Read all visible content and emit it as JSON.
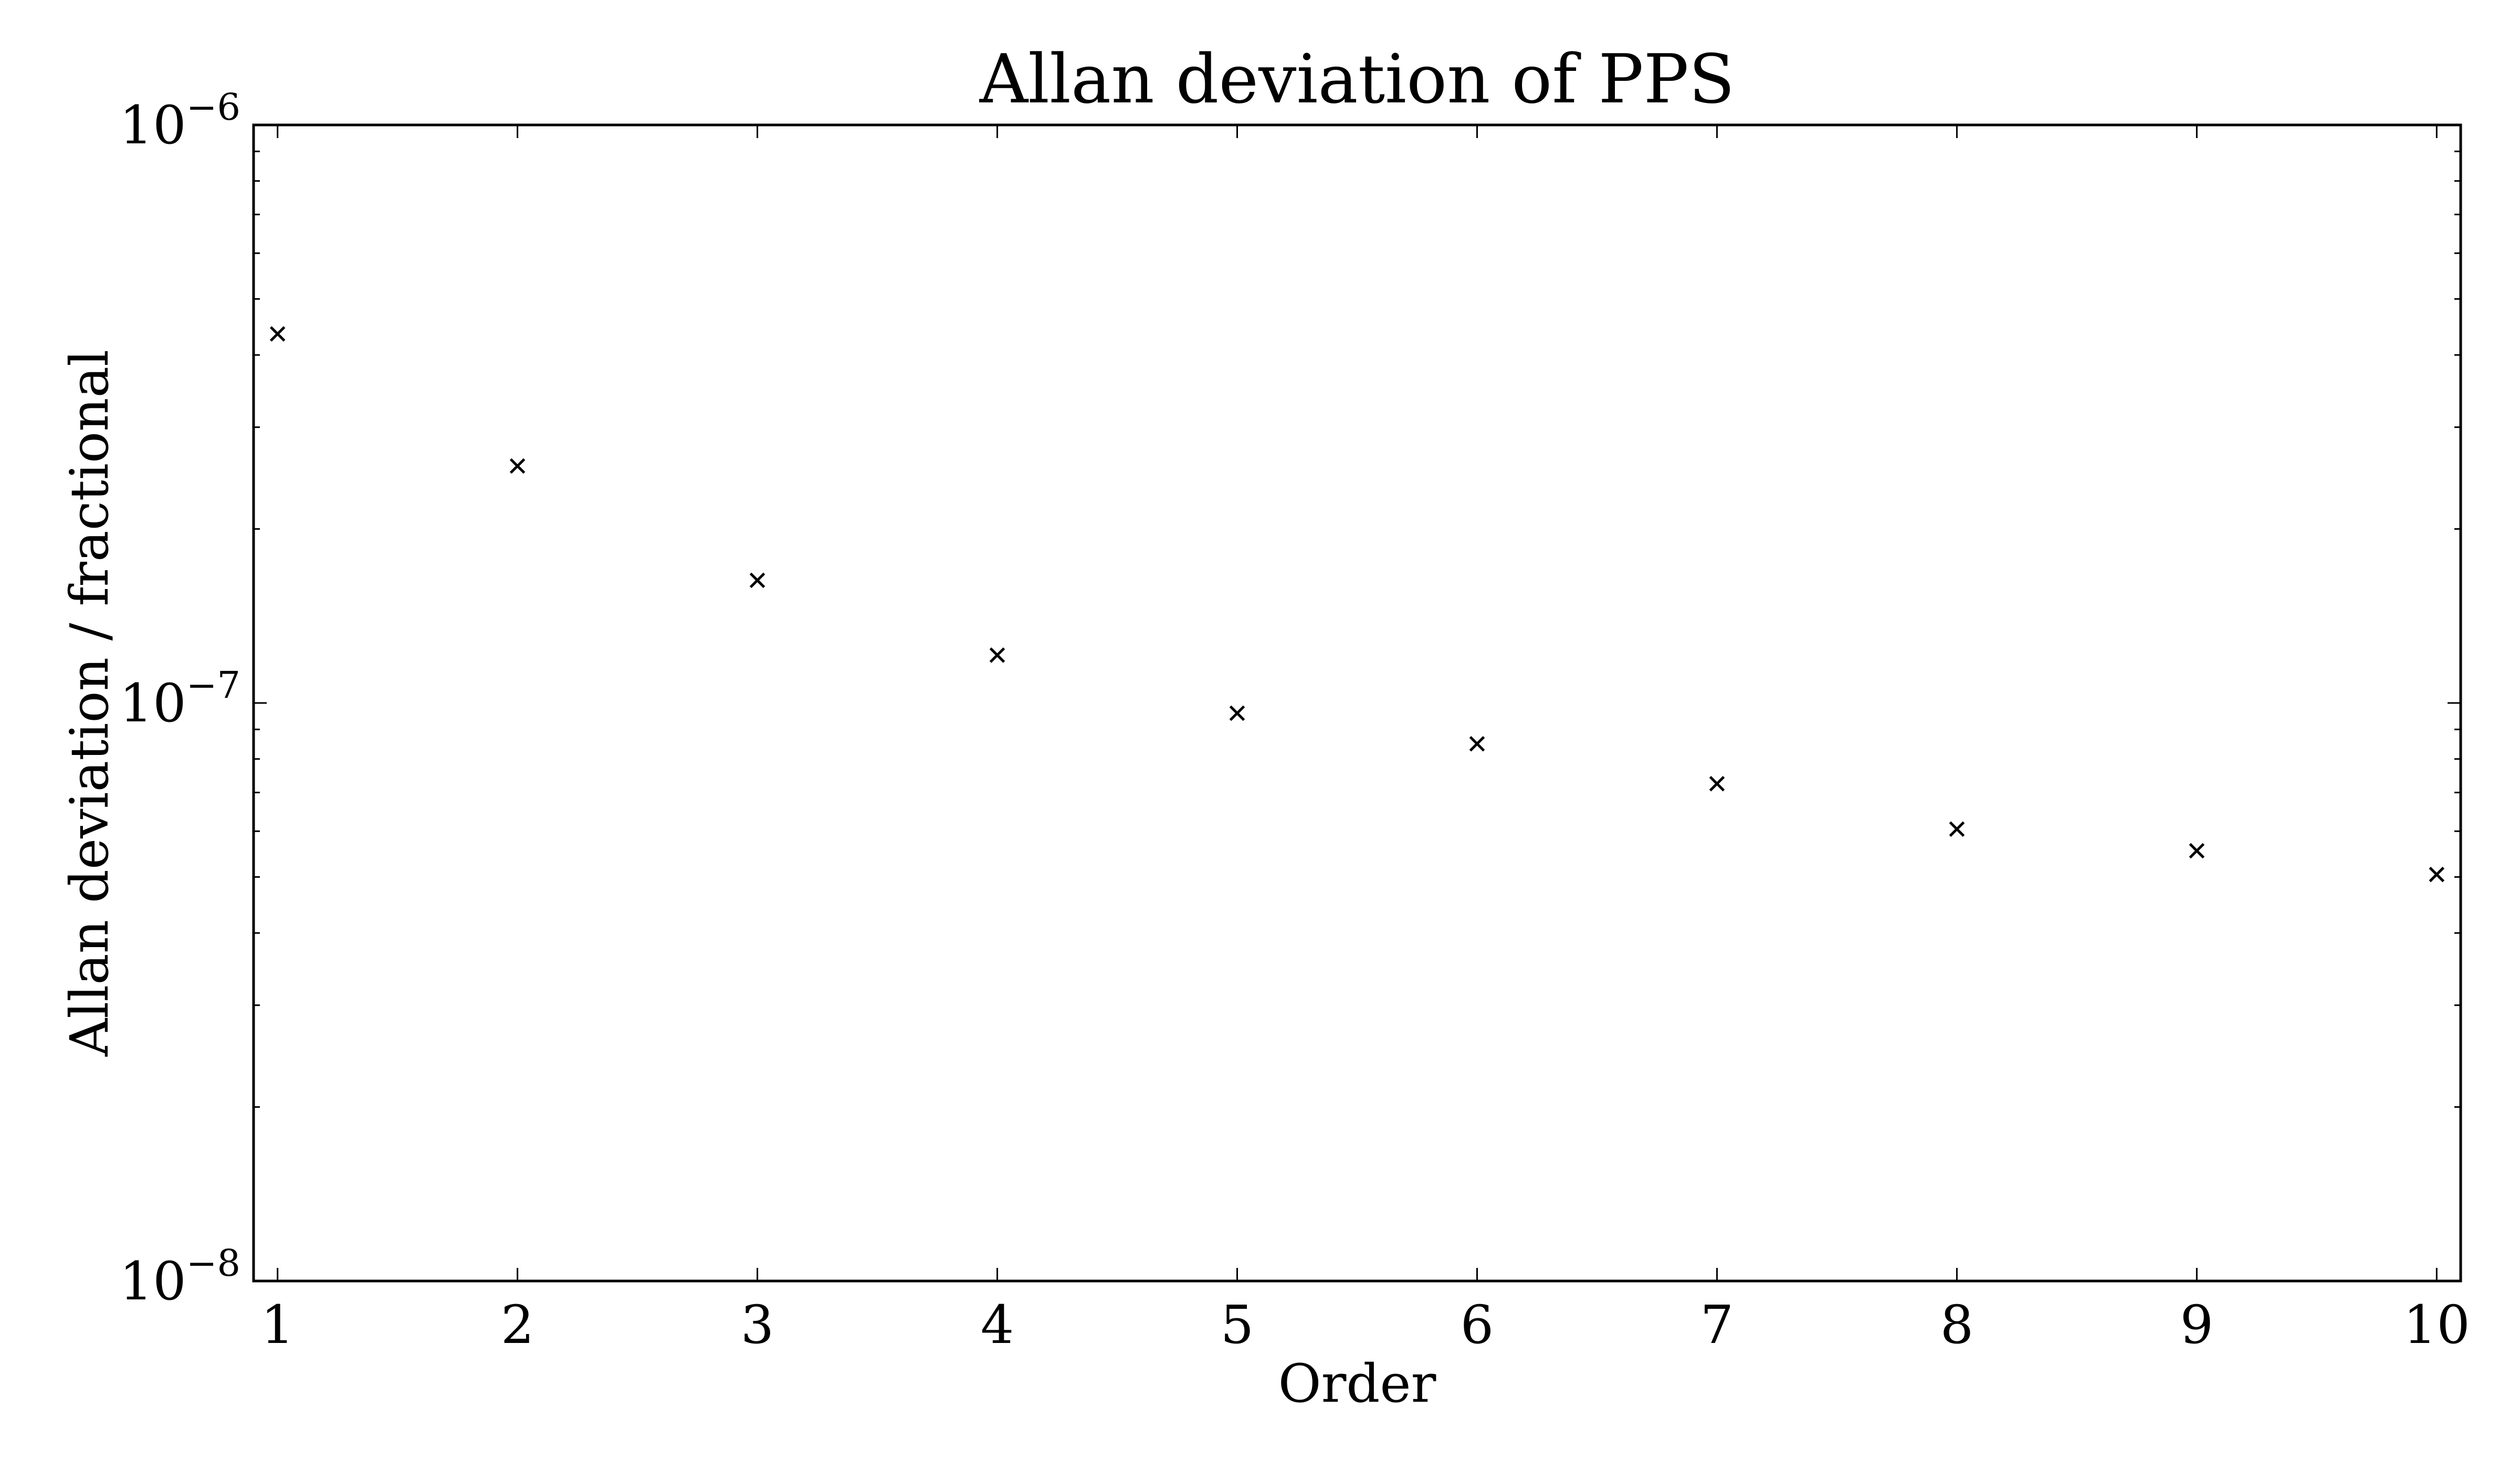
{
  "chart_data": {
    "type": "scatter",
    "title": "Allan deviation of PPS",
    "xlabel": "Order",
    "ylabel": "Allan deviation / fractional",
    "x_scale": "linear",
    "y_scale": "log",
    "xlim": [
      0.9,
      10.1
    ],
    "ylim": [
      1e-08,
      1e-06
    ],
    "grid": false,
    "legend": "none",
    "marker": "x",
    "color": "#000000",
    "x_ticks": [
      "1",
      "2",
      "3",
      "4",
      "5",
      "6",
      "7",
      "8",
      "9",
      "10"
    ],
    "y_ticks": [
      {
        "value": 1e-08,
        "base": "10",
        "exp": "−8"
      },
      {
        "value": 1e-07,
        "base": "10",
        "exp": "−7"
      },
      {
        "value": 1e-06,
        "base": "10",
        "exp": "−6"
      }
    ],
    "series": [
      {
        "x": [
          1,
          2,
          3,
          4,
          5,
          6,
          7,
          8,
          9,
          10
        ],
        "values": [
          4.35e-07,
          2.57e-07,
          1.63e-07,
          1.21e-07,
          9.6e-08,
          8.5e-08,
          7.25e-08,
          6.05e-08,
          5.55e-08,
          5.05e-08
        ]
      }
    ]
  }
}
